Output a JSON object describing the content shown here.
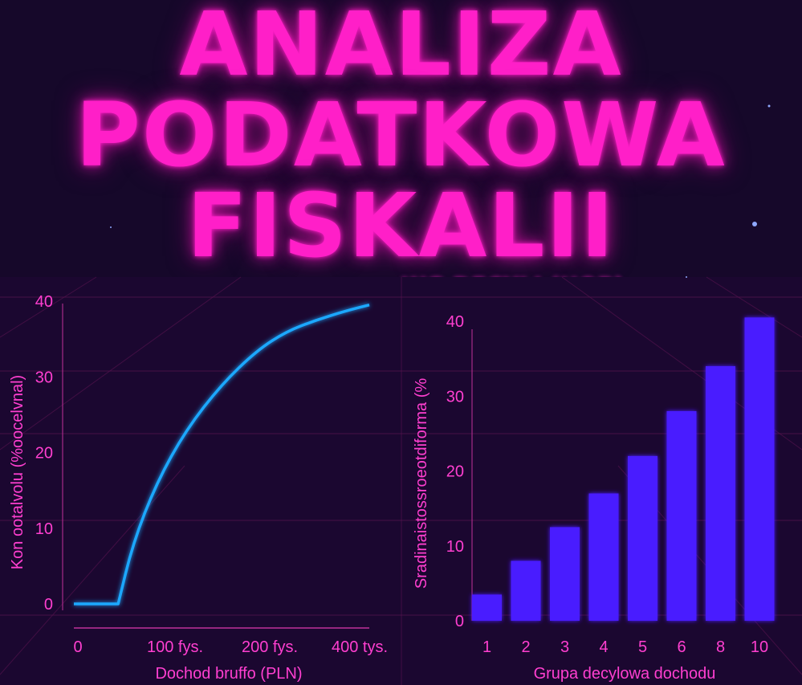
{
  "title_lines": [
    "ANALIZA",
    "PODATKOWA",
    "FISKALII"
  ],
  "subtitle": "WG DECYLI (UOP)",
  "colors": {
    "background": "#16082a",
    "accent": "#ff1fc8",
    "line": "#1aa8ff",
    "bar": "#4a1cff",
    "grid": "#5a1450"
  },
  "chart_data": [
    {
      "type": "line",
      "title": "",
      "xlabel": "Dochod bruffo (PLN)",
      "ylabel": "Kon ootalvolu (%oocelvnal)",
      "x_ticks": [
        "0",
        "100 fys.",
        "200 fys.",
        "400 tys."
      ],
      "y_ticks": [
        "0",
        "10",
        "20",
        "30",
        "40"
      ],
      "ylim": [
        0,
        40
      ],
      "series": [
        {
          "x": [
            0,
            0.15,
            0.2,
            0.28,
            0.38,
            0.5,
            0.62,
            0.72,
            0.82,
            0.92,
            1.0
          ],
          "y": [
            0,
            0,
            8,
            16,
            23,
            29,
            33.5,
            36,
            37.5,
            38.7,
            39.5
          ]
        }
      ]
    },
    {
      "type": "bar",
      "title": "",
      "xlabel": "Grupa decylowa dochodu",
      "ylabel": "Sradinaistossroeotdiforma (%",
      "categories": [
        "1",
        "2",
        "3",
        "4",
        "5",
        "6",
        "8",
        "10"
      ],
      "values": [
        3.5,
        8,
        12.5,
        17,
        22,
        28,
        34,
        40.5
      ],
      "y_ticks": [
        "0",
        "10",
        "20",
        "30",
        "40"
      ],
      "ylim": [
        0,
        40
      ]
    }
  ]
}
